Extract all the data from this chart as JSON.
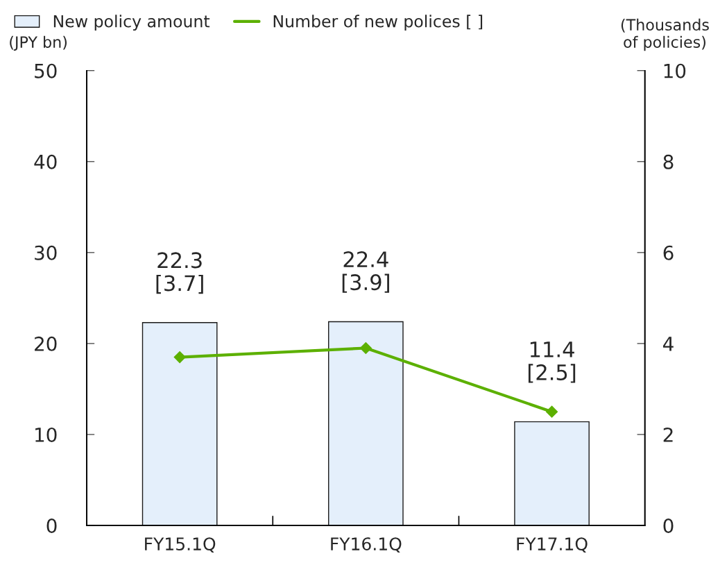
{
  "chart_data": {
    "type": "bar",
    "categories": [
      "FY15.1Q",
      "FY16.1Q",
      "FY17.1Q"
    ],
    "series": [
      {
        "name": "New policy amount",
        "color": "#e4effb",
        "values": [
          22.3,
          22.4,
          11.4
        ],
        "value_labels": [
          "22.3",
          "22.4",
          "11.4"
        ]
      },
      {
        "name": "Number of new polices [ ]",
        "type": "line",
        "axis": "y2",
        "color": "#5cb000",
        "marker": "diamond",
        "values": [
          3.7,
          3.9,
          2.5
        ],
        "value_labels": [
          "[3.7]",
          "[3.9]",
          "[2.5]"
        ]
      }
    ],
    "ylabel": "(JPY bn)",
    "y2label": "(Thousands\nof policies)",
    "ylim": [
      0,
      50
    ],
    "yticks": [
      0,
      10,
      20,
      30,
      40,
      50
    ],
    "y2lim": [
      0,
      10
    ],
    "y2ticks": [
      0,
      2,
      4,
      6,
      8,
      10
    ],
    "legend": "top",
    "grid": false
  }
}
